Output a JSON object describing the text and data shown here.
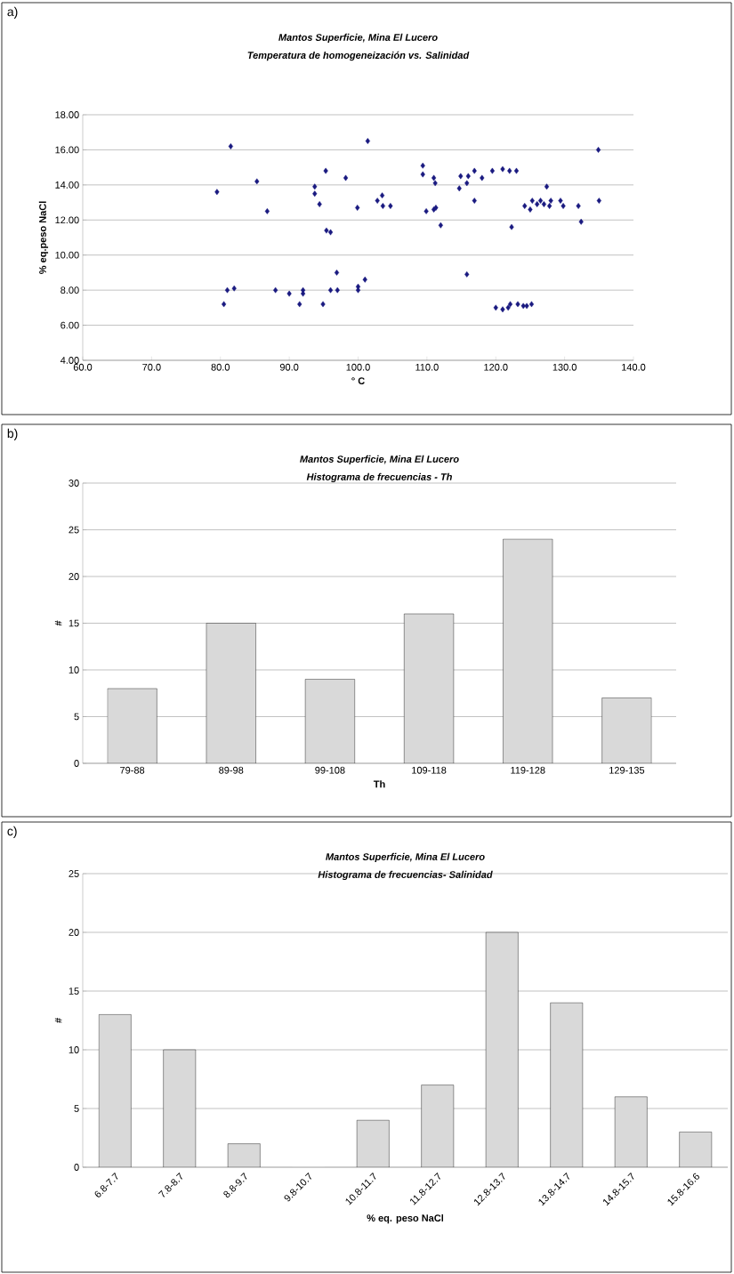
{
  "chart_data": [
    {
      "type": "scatter",
      "title": "Mantos Superficie, Mina El Lucero",
      "subtitle": "Temperatura de homogeneización vs. Salinidad",
      "xlabel": "° C",
      "ylabel": "% eq.peso NaCl",
      "annotations": [
        "a)"
      ],
      "color": "#1a1a80",
      "marker": "diamond",
      "grid": "y",
      "x": [
        79.5,
        80.5,
        81,
        81.5,
        82,
        85.3,
        86.8,
        88,
        90,
        91.5,
        92,
        92,
        93.7,
        93.7,
        94.4,
        94.9,
        95.3,
        95.4,
        96,
        96,
        96.9,
        97,
        98.2,
        99.9,
        100,
        100,
        101,
        101.4,
        102.8,
        103.5,
        103.6,
        104.7,
        109.4,
        109.4,
        109.9,
        111,
        111.2,
        111,
        111.3,
        112,
        114.7,
        114.9,
        115.8,
        115.8,
        116,
        116.9,
        116.9,
        118,
        119.5,
        120,
        121,
        121,
        121.8,
        122,
        122.1,
        122.3,
        123,
        123.2,
        124,
        124.2,
        124.5,
        125,
        125.2,
        125.3,
        126,
        126.5,
        127,
        127.4,
        127.8,
        128,
        129.4,
        129.8,
        132,
        132.4,
        134.9,
        135
      ],
      "values": [
        13.6,
        7.2,
        8.0,
        16.2,
        8.1,
        14.2,
        12.5,
        8.0,
        7.8,
        7.2,
        8.0,
        7.8,
        13.9,
        13.5,
        12.9,
        7.2,
        14.8,
        11.4,
        11.3,
        8.0,
        9.0,
        8.0,
        14.4,
        12.7,
        8.0,
        8.2,
        8.6,
        16.5,
        13.1,
        13.4,
        12.8,
        12.8,
        15.1,
        14.6,
        12.5,
        14.4,
        14.1,
        12.6,
        12.7,
        11.7,
        13.8,
        14.5,
        14.1,
        8.9,
        14.5,
        14.8,
        13.1,
        14.4,
        14.8,
        7.0,
        14.9,
        6.9,
        7.0,
        14.8,
        7.2,
        11.6,
        14.8,
        7.2,
        7.1,
        12.8,
        7.1,
        12.6,
        7.2,
        13.1,
        12.9,
        13.1,
        12.9,
        13.9,
        12.8,
        13.1,
        13.1,
        12.8,
        12.8,
        11.9,
        16.0,
        13.1
      ],
      "xlim": [
        60,
        140
      ],
      "ylim": [
        4,
        18
      ],
      "xticks": [
        {
          "value": 60,
          "label": "60.0"
        },
        {
          "value": 70,
          "label": "70.0"
        },
        {
          "value": 80,
          "label": "80.0"
        },
        {
          "value": 90,
          "label": "90.0"
        },
        {
          "value": 100,
          "label": "100.0"
        },
        {
          "value": 110,
          "label": "110.0"
        },
        {
          "value": 120,
          "label": "120.0"
        },
        {
          "value": 130,
          "label": "130.0"
        },
        {
          "value": 140,
          "label": "140.0"
        }
      ],
      "yticks": [
        {
          "value": 4,
          "label": "4.00"
        },
        {
          "value": 6,
          "label": "6.00"
        },
        {
          "value": 8,
          "label": "8.00"
        },
        {
          "value": 10,
          "label": "10.00"
        },
        {
          "value": 12,
          "label": "12.00"
        },
        {
          "value": 14,
          "label": "14.00"
        },
        {
          "value": 16,
          "label": "16.00"
        },
        {
          "value": 18,
          "label": "18.00"
        }
      ]
    },
    {
      "type": "bar",
      "title": "Mantos Superficie, Mina El Lucero",
      "subtitle": "Histograma de frecuencias - Th",
      "xlabel": "Th",
      "ylabel": "#",
      "annotations": [
        "b)"
      ],
      "color": "#d9d9d9",
      "grid": "y",
      "categories": [
        "79-88",
        "89-98",
        "99-108",
        "109-118",
        "119-128",
        "129-135"
      ],
      "values": [
        8,
        15,
        9,
        16,
        24,
        7
      ],
      "ylim": [
        0,
        30
      ],
      "yticks": [
        0,
        5,
        10,
        15,
        20,
        25,
        30
      ]
    },
    {
      "type": "bar",
      "title": "Mantos Superficie, Mina El Lucero",
      "subtitle": "Histograma de frecuencias- Salinidad",
      "xlabel": "% eq. peso NaCl",
      "ylabel": "#",
      "annotations": [
        "c)"
      ],
      "color": "#d9d9d9",
      "grid": "y",
      "categories": [
        "6.8-7.7",
        "7.8-8.7",
        "8.8-9.7",
        "9.8-10.7",
        "10.8-11.7",
        "11.8-12.7",
        "12.8-13.7",
        "13.8-14.7",
        "14.8-15.7",
        "15.8-16.6"
      ],
      "values": [
        13,
        10,
        2,
        0,
        4,
        7,
        20,
        14,
        6,
        3
      ],
      "ylim": [
        0,
        25
      ],
      "yticks": [
        0,
        5,
        10,
        15,
        20,
        25
      ]
    }
  ]
}
